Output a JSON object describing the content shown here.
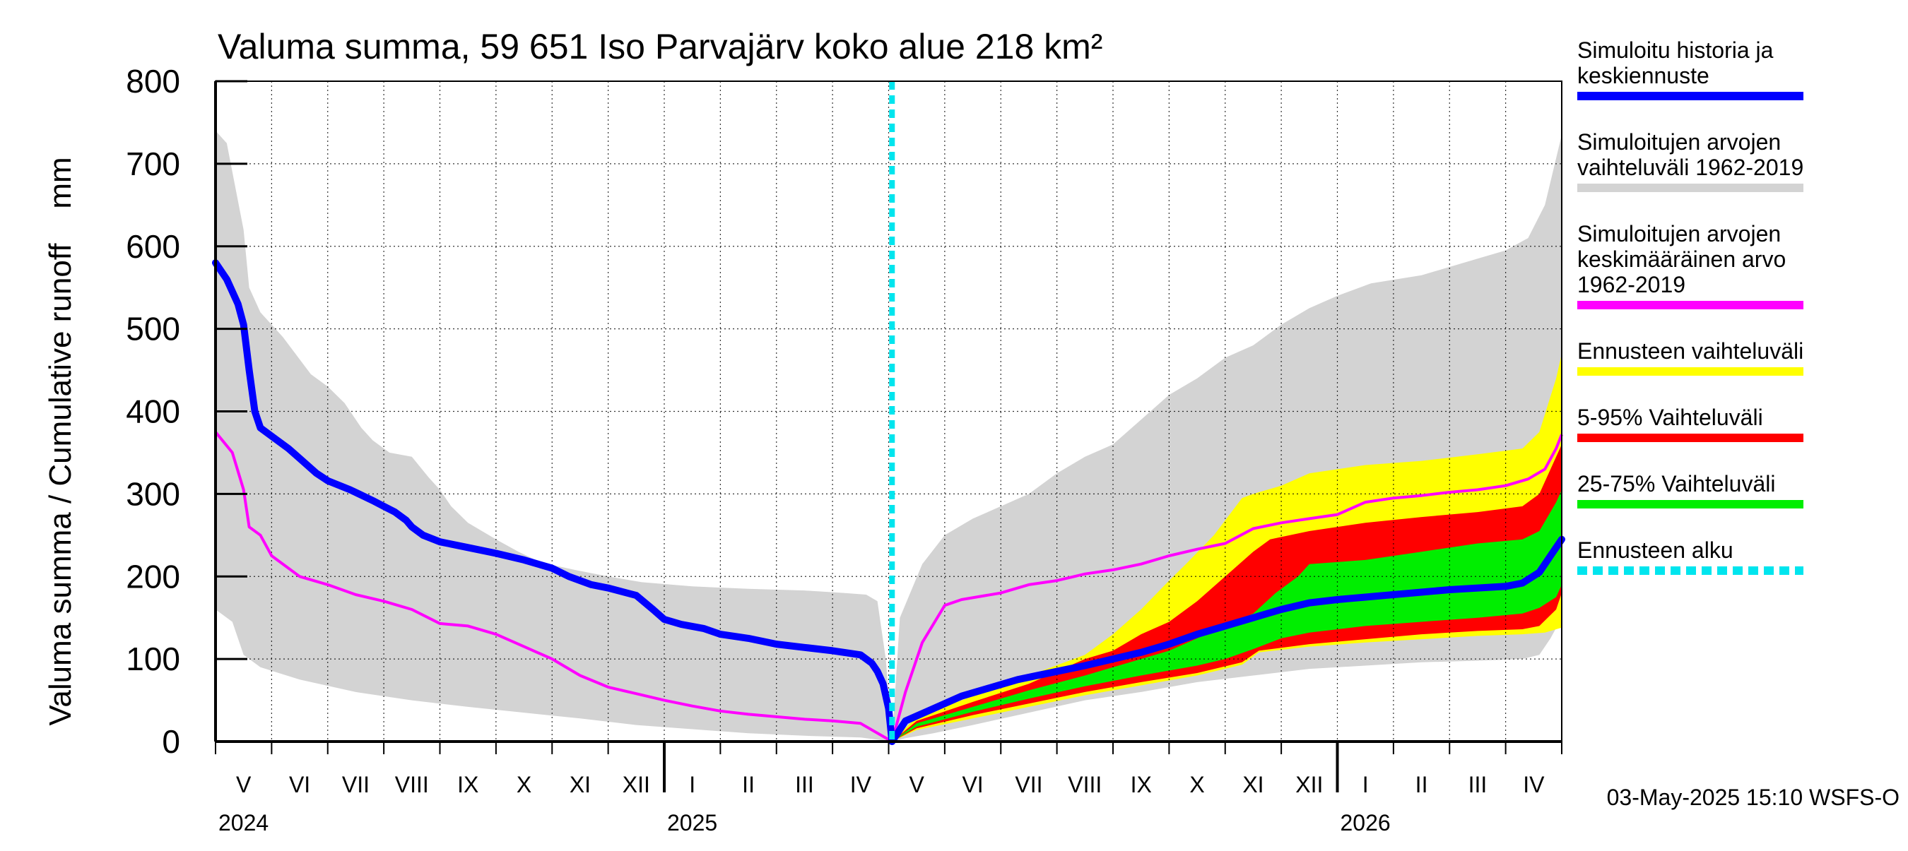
{
  "chart_data": {
    "type": "area",
    "title": "Valuma summa, 59 651 Iso Parvajärv koko alue 218 km²",
    "ylabel": "Valuma summa / Cumulative runoff    mm",
    "ylim": [
      0,
      800
    ],
    "y_ticks": [
      0,
      100,
      200,
      300,
      400,
      500,
      600,
      700,
      800
    ],
    "months": [
      "V",
      "VI",
      "VII",
      "VIII",
      "IX",
      "X",
      "XI",
      "XII",
      "I",
      "II",
      "III",
      "IV",
      "V",
      "VI",
      "VII",
      "VIII",
      "IX",
      "X",
      "XI",
      "XII",
      "I",
      "II",
      "III",
      "IV"
    ],
    "years": [
      "2024",
      "2025",
      "2026"
    ],
    "x_unit": "month index, 0 = 1 May 2024, 24 = 1 May 2026",
    "forecast_start_x": 12.06,
    "legend": [
      {
        "id": "sim",
        "lines": [
          "Simuloitu historia ja",
          "keskiennuste"
        ],
        "color": "#0000ff"
      },
      {
        "id": "range",
        "lines": [
          "Simuloitujen arvojen",
          "vaihteluväli 1962-2019"
        ],
        "color": "#d3d3d3"
      },
      {
        "id": "mean",
        "lines": [
          "Simuloitujen arvojen",
          "keskimääräinen arvo",
          "   1962-2019"
        ],
        "color": "#ff00ff"
      },
      {
        "id": "fcrange",
        "lines": [
          "Ennusteen vaihteluväli"
        ],
        "color": "#ffff00"
      },
      {
        "id": "p5_95",
        "lines": [
          "5-95% Vaihteluväli"
        ],
        "color": "#ff0000"
      },
      {
        "id": "p25_75",
        "lines": [
          "25-75% Vaihteluväli"
        ],
        "color": "#00ee00"
      },
      {
        "id": "fcstart",
        "lines": [
          "Ennusteen alku"
        ],
        "color": "#00e5ee"
      }
    ],
    "footer": "03-May-2025 15:10 WSFS-O",
    "series": {
      "hist_max": [
        [
          0,
          740
        ],
        [
          0.2,
          725
        ],
        [
          0.5,
          620
        ],
        [
          0.6,
          550
        ],
        [
          0.8,
          520
        ],
        [
          1.2,
          490
        ],
        [
          1.7,
          445
        ],
        [
          2.0,
          430
        ],
        [
          2.3,
          410
        ],
        [
          2.6,
          380
        ],
        [
          2.8,
          365
        ],
        [
          3.1,
          350
        ],
        [
          3.5,
          345
        ],
        [
          3.8,
          320
        ],
        [
          4.0,
          305
        ],
        [
          4.2,
          285
        ],
        [
          4.5,
          265
        ],
        [
          5.0,
          245
        ],
        [
          5.4,
          230
        ],
        [
          5.8,
          217
        ],
        [
          6.4,
          208
        ],
        [
          7.0,
          200
        ],
        [
          7.6,
          193
        ],
        [
          8.5,
          188
        ],
        [
          9.5,
          185
        ],
        [
          10.5,
          183
        ],
        [
          11.2,
          180
        ],
        [
          11.6,
          178
        ],
        [
          11.8,
          170
        ],
        [
          11.95,
          100
        ],
        [
          12.06,
          0
        ],
        [
          12.2,
          150
        ],
        [
          12.6,
          215
        ],
        [
          13.0,
          250
        ],
        [
          13.5,
          270
        ],
        [
          14.0,
          285
        ],
        [
          14.5,
          300
        ],
        [
          15.0,
          325
        ],
        [
          15.5,
          345
        ],
        [
          16.0,
          360
        ],
        [
          16.5,
          390
        ],
        [
          17.0,
          420
        ],
        [
          17.5,
          440
        ],
        [
          18.0,
          465
        ],
        [
          18.5,
          480
        ],
        [
          19.0,
          505
        ],
        [
          19.5,
          525
        ],
        [
          20.0,
          540
        ],
        [
          20.6,
          555
        ],
        [
          21.5,
          565
        ],
        [
          22.0,
          575
        ],
        [
          22.5,
          585
        ],
        [
          23.0,
          595
        ],
        [
          23.4,
          610
        ],
        [
          23.7,
          650
        ],
        [
          24,
          735
        ]
      ],
      "hist_min": [
        [
          0,
          160
        ],
        [
          0.3,
          145
        ],
        [
          0.5,
          105
        ],
        [
          0.8,
          90
        ],
        [
          1.5,
          75
        ],
        [
          2.5,
          60
        ],
        [
          3.5,
          50
        ],
        [
          4.5,
          42
        ],
        [
          5.5,
          35
        ],
        [
          6.5,
          28
        ],
        [
          7.5,
          20
        ],
        [
          8.5,
          15
        ],
        [
          9.5,
          10
        ],
        [
          10.5,
          7
        ],
        [
          11.5,
          5
        ],
        [
          12.06,
          0
        ],
        [
          12.3,
          4
        ],
        [
          12.8,
          10
        ],
        [
          13.5,
          20
        ],
        [
          14.5,
          35
        ],
        [
          15.5,
          50
        ],
        [
          16.5,
          60
        ],
        [
          17.5,
          72
        ],
        [
          18.5,
          80
        ],
        [
          19.5,
          88
        ],
        [
          20.5,
          92
        ],
        [
          21.5,
          96
        ],
        [
          22.5,
          98
        ],
        [
          23.3,
          100
        ],
        [
          23.6,
          105
        ],
        [
          23.8,
          125
        ],
        [
          24,
          150
        ]
      ],
      "fc_max": [
        [
          12.06,
          0
        ],
        [
          12.5,
          30
        ],
        [
          13.5,
          55
        ],
        [
          14.5,
          80
        ],
        [
          15.5,
          105
        ],
        [
          16.0,
          130
        ],
        [
          16.5,
          160
        ],
        [
          17.0,
          195
        ],
        [
          17.3,
          215
        ],
        [
          17.8,
          250
        ],
        [
          18.3,
          295
        ],
        [
          18.5,
          300
        ],
        [
          19.0,
          310
        ],
        [
          19.5,
          325
        ],
        [
          20.5,
          335
        ],
        [
          21.5,
          340
        ],
        [
          22.5,
          348
        ],
        [
          23.3,
          355
        ],
        [
          23.6,
          375
        ],
        [
          23.9,
          440
        ],
        [
          24,
          470
        ]
      ],
      "fc_min": [
        [
          12.06,
          0
        ],
        [
          12.5,
          14
        ],
        [
          13.5,
          28
        ],
        [
          14.5,
          42
        ],
        [
          15.5,
          56
        ],
        [
          16.5,
          68
        ],
        [
          17.5,
          80
        ],
        [
          18.3,
          93
        ],
        [
          18.6,
          108
        ],
        [
          19.5,
          115
        ],
        [
          20.5,
          120
        ],
        [
          21.5,
          124
        ],
        [
          22.5,
          128
        ],
        [
          23.3,
          130
        ],
        [
          23.7,
          132
        ],
        [
          24,
          138
        ]
      ],
      "p95": [
        [
          12.06,
          0
        ],
        [
          12.5,
          25
        ],
        [
          13.5,
          48
        ],
        [
          14.5,
          70
        ],
        [
          15.0,
          85
        ],
        [
          15.5,
          100
        ],
        [
          16.0,
          110
        ],
        [
          16.5,
          130
        ],
        [
          17.0,
          145
        ],
        [
          17.5,
          170
        ],
        [
          18.0,
          200
        ],
        [
          18.5,
          230
        ],
        [
          18.8,
          245
        ],
        [
          19.5,
          255
        ],
        [
          20.5,
          265
        ],
        [
          21.5,
          272
        ],
        [
          22.5,
          278
        ],
        [
          23.3,
          285
        ],
        [
          23.6,
          300
        ],
        [
          23.9,
          345
        ],
        [
          24,
          360
        ]
      ],
      "p5": [
        [
          12.06,
          0
        ],
        [
          12.5,
          16
        ],
        [
          13.5,
          32
        ],
        [
          14.5,
          46
        ],
        [
          15.5,
          60
        ],
        [
          16.5,
          72
        ],
        [
          17.5,
          83
        ],
        [
          18.3,
          96
        ],
        [
          18.6,
          110
        ],
        [
          19.5,
          118
        ],
        [
          20.5,
          124
        ],
        [
          21.5,
          130
        ],
        [
          22.5,
          134
        ],
        [
          23.3,
          136
        ],
        [
          23.6,
          140
        ],
        [
          23.9,
          160
        ],
        [
          24,
          180
        ]
      ],
      "p75": [
        [
          12.06,
          0
        ],
        [
          12.5,
          22
        ],
        [
          13.5,
          42
        ],
        [
          14.5,
          62
        ],
        [
          15.5,
          80
        ],
        [
          16.0,
          90
        ],
        [
          16.5,
          100
        ],
        [
          17.0,
          110
        ],
        [
          17.5,
          125
        ],
        [
          18.0,
          140
        ],
        [
          18.5,
          155
        ],
        [
          18.9,
          180
        ],
        [
          19.3,
          200
        ],
        [
          19.5,
          215
        ],
        [
          20.5,
          220
        ],
        [
          21.5,
          230
        ],
        [
          22.5,
          240
        ],
        [
          23.3,
          245
        ],
        [
          23.6,
          255
        ],
        [
          23.9,
          290
        ],
        [
          24,
          305
        ]
      ],
      "p25": [
        [
          12.06,
          0
        ],
        [
          12.5,
          18
        ],
        [
          13.5,
          36
        ],
        [
          14.5,
          52
        ],
        [
          15.5,
          67
        ],
        [
          16.5,
          80
        ],
        [
          17.5,
          92
        ],
        [
          18.0,
          100
        ],
        [
          18.5,
          112
        ],
        [
          19.0,
          125
        ],
        [
          19.5,
          132
        ],
        [
          20.5,
          140
        ],
        [
          21.5,
          145
        ],
        [
          22.5,
          150
        ],
        [
          23.3,
          155
        ],
        [
          23.6,
          162
        ],
        [
          23.9,
          175
        ],
        [
          24,
          190
        ]
      ],
      "mean": [
        [
          0,
          375
        ],
        [
          0.3,
          350
        ],
        [
          0.5,
          305
        ],
        [
          0.6,
          260
        ],
        [
          0.8,
          250
        ],
        [
          1.0,
          225
        ],
        [
          1.5,
          200
        ],
        [
          2.0,
          190
        ],
        [
          2.5,
          178
        ],
        [
          3.0,
          170
        ],
        [
          3.5,
          160
        ],
        [
          4.0,
          143
        ],
        [
          4.5,
          140
        ],
        [
          5.0,
          130
        ],
        [
          5.5,
          115
        ],
        [
          6.0,
          100
        ],
        [
          6.5,
          80
        ],
        [
          7.0,
          66
        ],
        [
          7.5,
          58
        ],
        [
          8.0,
          50
        ],
        [
          8.5,
          43
        ],
        [
          9.0,
          37
        ],
        [
          9.5,
          33
        ],
        [
          10.0,
          30
        ],
        [
          10.5,
          27
        ],
        [
          11.0,
          25
        ],
        [
          11.5,
          22
        ],
        [
          12.06,
          0
        ],
        [
          12.3,
          60
        ],
        [
          12.6,
          120
        ],
        [
          13.0,
          165
        ],
        [
          13.3,
          172
        ],
        [
          14.0,
          180
        ],
        [
          14.5,
          190
        ],
        [
          15.0,
          195
        ],
        [
          15.5,
          203
        ],
        [
          16.0,
          208
        ],
        [
          16.5,
          215
        ],
        [
          17.0,
          225
        ],
        [
          17.5,
          233
        ],
        [
          18.0,
          240
        ],
        [
          18.5,
          258
        ],
        [
          19.0,
          265
        ],
        [
          19.5,
          270
        ],
        [
          20.0,
          275
        ],
        [
          20.5,
          290
        ],
        [
          21.0,
          295
        ],
        [
          21.5,
          298
        ],
        [
          22.0,
          302
        ],
        [
          22.5,
          305
        ],
        [
          23.0,
          310
        ],
        [
          23.4,
          318
        ],
        [
          23.7,
          330
        ],
        [
          23.9,
          355
        ],
        [
          24,
          372
        ]
      ],
      "sim": [
        [
          0,
          580
        ],
        [
          0.2,
          560
        ],
        [
          0.4,
          530
        ],
        [
          0.5,
          505
        ],
        [
          0.6,
          450
        ],
        [
          0.7,
          400
        ],
        [
          0.8,
          380
        ],
        [
          1.0,
          370
        ],
        [
          1.3,
          355
        ],
        [
          1.5,
          343
        ],
        [
          1.8,
          325
        ],
        [
          2.0,
          316
        ],
        [
          2.4,
          305
        ],
        [
          2.8,
          292
        ],
        [
          3.0,
          285
        ],
        [
          3.2,
          278
        ],
        [
          3.4,
          268
        ],
        [
          3.5,
          260
        ],
        [
          3.7,
          250
        ],
        [
          4.0,
          242
        ],
        [
          4.5,
          235
        ],
        [
          5.0,
          228
        ],
        [
          5.5,
          220
        ],
        [
          6.0,
          210
        ],
        [
          6.3,
          200
        ],
        [
          6.7,
          190
        ],
        [
          7.0,
          186
        ],
        [
          7.5,
          177
        ],
        [
          7.8,
          160
        ],
        [
          8.0,
          148
        ],
        [
          8.3,
          142
        ],
        [
          8.7,
          137
        ],
        [
          9.0,
          130
        ],
        [
          9.5,
          125
        ],
        [
          10.0,
          118
        ],
        [
          10.5,
          114
        ],
        [
          11.0,
          110
        ],
        [
          11.3,
          107
        ],
        [
          11.5,
          105
        ],
        [
          11.7,
          95
        ],
        [
          11.8,
          85
        ],
        [
          11.9,
          70
        ],
        [
          12.0,
          40
        ],
        [
          12.06,
          0
        ],
        [
          12.3,
          25
        ],
        [
          12.8,
          40
        ],
        [
          13.3,
          55
        ],
        [
          13.8,
          65
        ],
        [
          14.3,
          75
        ],
        [
          15.0,
          85
        ],
        [
          15.5,
          92
        ],
        [
          16.0,
          100
        ],
        [
          16.5,
          108
        ],
        [
          17.0,
          118
        ],
        [
          17.5,
          130
        ],
        [
          18.0,
          140
        ],
        [
          18.5,
          150
        ],
        [
          19.0,
          160
        ],
        [
          19.5,
          168
        ],
        [
          20.0,
          172
        ],
        [
          20.5,
          175
        ],
        [
          21.0,
          178
        ],
        [
          21.5,
          181
        ],
        [
          22.0,
          184
        ],
        [
          22.5,
          186
        ],
        [
          23.0,
          188
        ],
        [
          23.3,
          192
        ],
        [
          23.6,
          205
        ],
        [
          23.8,
          225
        ],
        [
          24,
          245
        ]
      ]
    }
  }
}
